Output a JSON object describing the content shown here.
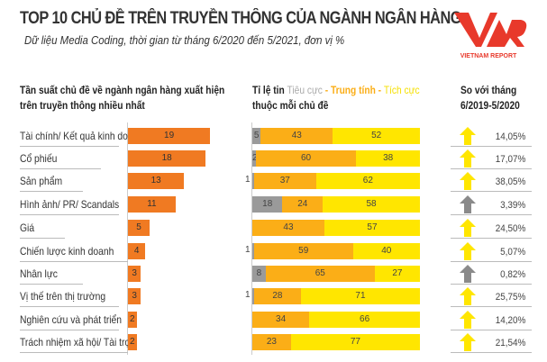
{
  "title": "TOP 10 CHỦ ĐỀ TRÊN TRUYỀN THÔNG CỦA NGÀNH NGÂN HÀNG",
  "subtitle": "Dữ liệu Media Coding, thời gian từ tháng 6/2020 đến 5/2021, đơn vị %",
  "logo": {
    "mark": "VNR",
    "text": "VIETNAM REPORT",
    "color": "#e8392b"
  },
  "headers": {
    "frequency": [
      "Tần suất chủ đề về ngành ngân hàng xuất hiện",
      "trên truyền thông nhiều nhất"
    ],
    "ratio_prefix": "Tỉ lệ tin ",
    "negative": "Tiêu cực",
    " sep1": " - ",
    "neutral": "Trung tính",
    "sep": " - ",
    "positive": "Tích cực",
    "ratio_line2": "thuộc mỗi chủ đề",
    "compare": [
      "So với tháng",
      "6/2019-5/2020"
    ]
  },
  "colors": {
    "frequency": "#f07a22",
    "negative": "#9a9a9a",
    "neutral": "#fbae17",
    "positive": "#ffe600",
    "arrow_up": "#ffe600",
    "arrow_gray": "#8a8a8a"
  },
  "chart_data": {
    "type": "bar",
    "categories": [
      "Tài chính/ Kết quả kinh doanh",
      "Cổ phiếu",
      "Sản phẩm",
      "Hình ảnh/ PR/ Scandals",
      "Giá",
      "Chiến lược kinh doanh",
      "Nhân lực",
      "Vị thế trên thị trường",
      "Nghiên cứu và phát triển",
      "Trách nhiệm xã hội/ Tài trợ"
    ],
    "frequency": [
      19,
      18,
      13,
      11,
      5,
      4,
      3,
      3,
      2,
      2
    ],
    "series": [
      {
        "name": "Tiêu cực",
        "values": [
          5,
          2,
          1,
          18,
          0,
          1,
          8,
          1,
          0,
          0
        ]
      },
      {
        "name": "Trung tính",
        "values": [
          43,
          60,
          37,
          24,
          43,
          59,
          65,
          28,
          34,
          23
        ]
      },
      {
        "name": "Tích cực",
        "values": [
          52,
          38,
          62,
          58,
          57,
          40,
          27,
          71,
          66,
          77
        ]
      }
    ],
    "change": [
      "14,05%",
      "17,07%",
      "38,05%",
      "3,39%",
      "24,50%",
      "5,07%",
      "0,82%",
      "25,75%",
      "14,20%",
      "21,54%"
    ],
    "arrow_color": [
      "yellow",
      "yellow",
      "yellow",
      "gray",
      "yellow",
      "yellow",
      "gray",
      "yellow",
      "yellow",
      "yellow"
    ]
  }
}
